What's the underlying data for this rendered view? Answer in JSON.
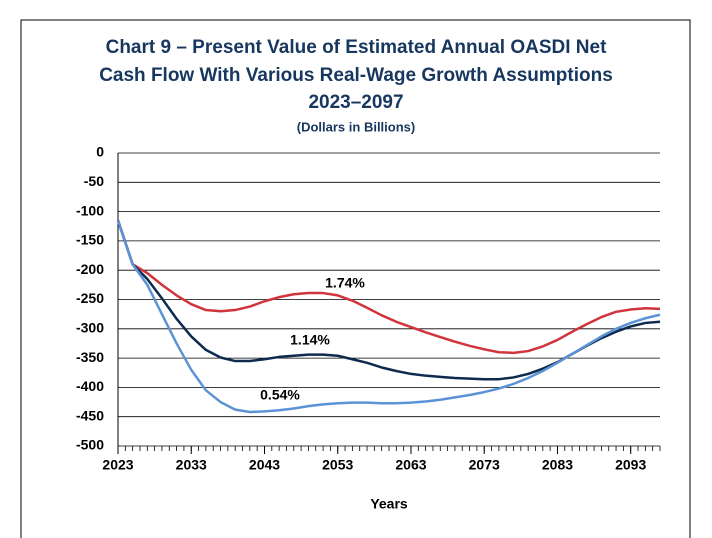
{
  "chart_data": {
    "type": "line",
    "title": [
      "Chart 9 – Present Value of Estimated Annual OASDI Net",
      "Cash Flow With Various Real-Wage Growth Assumptions",
      "2023–2097"
    ],
    "subtitle": "(Dollars in Billions)",
    "x_label": "Years",
    "x": [
      2023,
      2025,
      2027,
      2029,
      2031,
      2033,
      2035,
      2037,
      2039,
      2041,
      2043,
      2045,
      2047,
      2049,
      2051,
      2053,
      2055,
      2057,
      2059,
      2061,
      2063,
      2065,
      2067,
      2069,
      2071,
      2073,
      2075,
      2077,
      2079,
      2081,
      2083,
      2085,
      2087,
      2089,
      2091,
      2093,
      2095,
      2097
    ],
    "series": [
      {
        "name": "1.74%",
        "color": "#d0343c",
        "values": [
          -115,
          -190,
          -205,
          -225,
          -243,
          -258,
          -268,
          -270,
          -268,
          -262,
          -253,
          -246,
          -241,
          -239,
          -239,
          -243,
          -252,
          -264,
          -277,
          -288,
          -297,
          -306,
          -314,
          -322,
          -329,
          -335,
          -340,
          -341,
          -338,
          -330,
          -319,
          -305,
          -292,
          -280,
          -271,
          -267,
          -265,
          -266
        ]
      },
      {
        "name": "1.14%",
        "color": "#0e2a4f",
        "values": [
          -115,
          -190,
          -215,
          -248,
          -283,
          -313,
          -336,
          -349,
          -355,
          -355,
          -352,
          -348,
          -346,
          -344,
          -344,
          -346,
          -352,
          -358,
          -366,
          -372,
          -377,
          -380,
          -382,
          -384,
          -385,
          -386,
          -386,
          -383,
          -377,
          -368,
          -357,
          -343,
          -329,
          -316,
          -305,
          -296,
          -290,
          -288
        ]
      },
      {
        "name": "0.54%",
        "color": "#5b93d6",
        "values": [
          -115,
          -190,
          -225,
          -275,
          -325,
          -370,
          -405,
          -425,
          -438,
          -442,
          -441,
          -439,
          -436,
          -432,
          -429,
          -427,
          -426,
          -426,
          -427,
          -427,
          -426,
          -424,
          -421,
          -417,
          -413,
          -408,
          -402,
          -394,
          -384,
          -372,
          -358,
          -343,
          -328,
          -313,
          -300,
          -290,
          -282,
          -276
        ]
      }
    ],
    "xlim": [
      2023,
      2097
    ],
    "xticks": [
      2023,
      2033,
      2043,
      2053,
      2063,
      2073,
      2083,
      2093
    ],
    "ylim": [
      -500,
      0
    ],
    "yticks": [
      0,
      -50,
      -100,
      -150,
      -200,
      -250,
      -300,
      -350,
      -400,
      -450,
      -500
    ],
    "grid": true
  }
}
